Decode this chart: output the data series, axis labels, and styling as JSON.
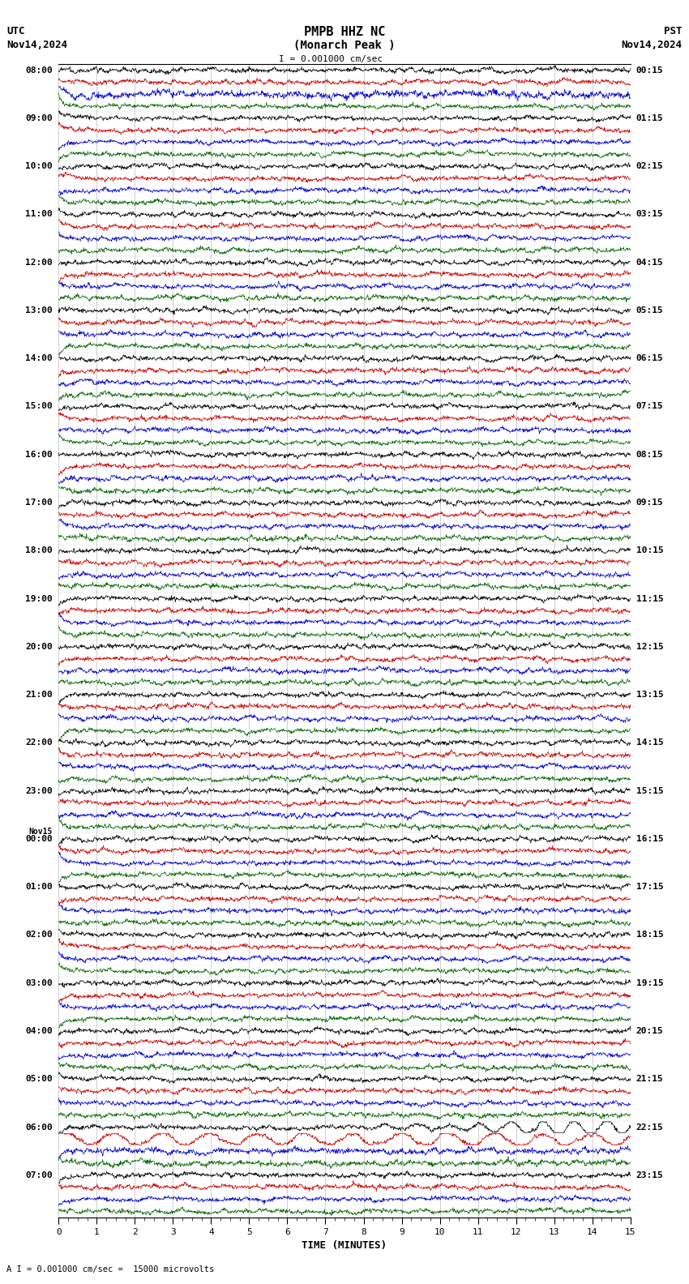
{
  "title_line1": "PMPB HHZ NC",
  "title_line2": "(Monarch Peak )",
  "scale_label": "I = 0.001000 cm/sec",
  "bottom_scale": "A I = 0.001000 cm/sec =  15000 microvolts",
  "utc_label": "UTC",
  "utc_date": "Nov14,2024",
  "pst_label": "PST",
  "pst_date": "Nov14,2024",
  "xlabel": "TIME (MINUTES)",
  "xlim": [
    0,
    15
  ],
  "xticks": [
    0,
    1,
    2,
    3,
    4,
    5,
    6,
    7,
    8,
    9,
    10,
    11,
    12,
    13,
    14,
    15
  ],
  "trace_color_black": "#000000",
  "trace_color_red": "#cc0000",
  "trace_color_blue": "#0000cc",
  "trace_color_green": "#006600",
  "utc_times": [
    "08:00",
    "09:00",
    "10:00",
    "11:00",
    "12:00",
    "13:00",
    "14:00",
    "15:00",
    "16:00",
    "17:00",
    "18:00",
    "19:00",
    "20:00",
    "21:00",
    "22:00",
    "23:00",
    "Nov15\n00:00",
    "01:00",
    "02:00",
    "03:00",
    "04:00",
    "05:00",
    "06:00",
    "07:00"
  ],
  "pst_times": [
    "00:15",
    "01:15",
    "02:15",
    "03:15",
    "04:15",
    "05:15",
    "06:15",
    "07:15",
    "08:15",
    "09:15",
    "10:15",
    "11:15",
    "12:15",
    "13:15",
    "14:15",
    "15:15",
    "16:15",
    "17:15",
    "18:15",
    "19:15",
    "20:15",
    "21:15",
    "22:15",
    "23:15"
  ],
  "n_rows": 24,
  "traces_per_row": 4,
  "fig_width": 8.5,
  "fig_height": 15.84,
  "dpi": 100
}
